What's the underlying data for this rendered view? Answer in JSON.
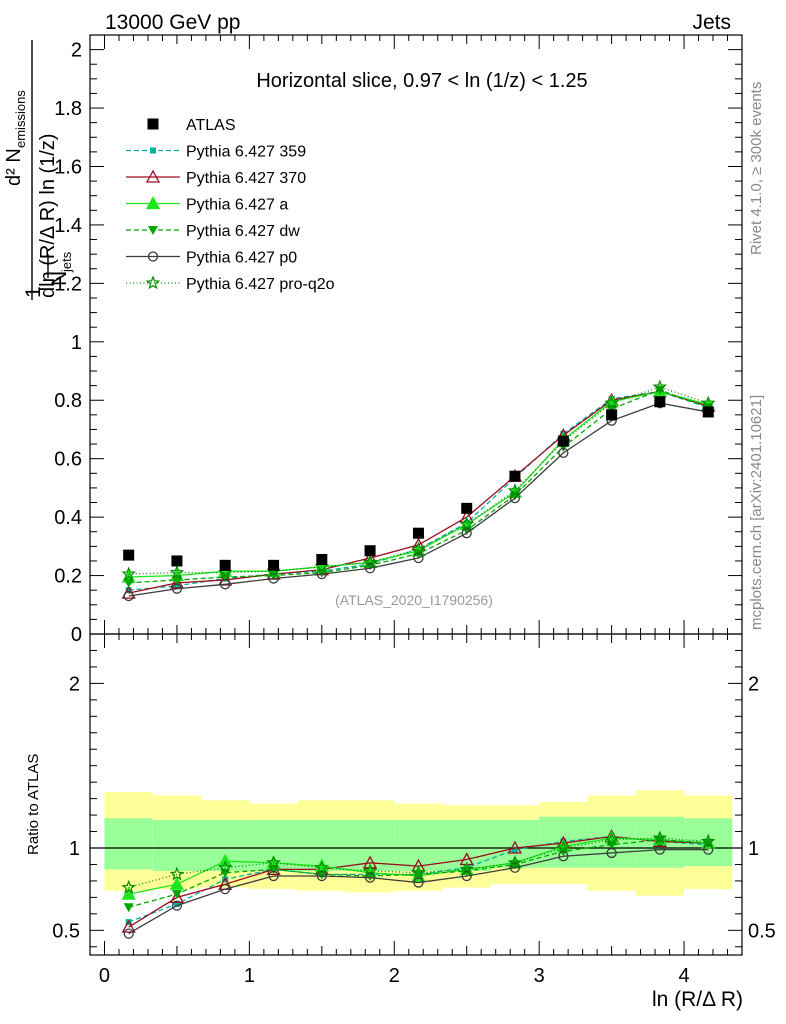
{
  "chart_data": {
    "type": "line",
    "header_left": "13000 GeV pp",
    "header_right": "Jets",
    "title": "Horizontal slice, 0.97 < ln (1/z) < 1.25",
    "watermark": "(ATLAS_2020_I1790256)",
    "side_label_top": "Rivet 4.1.0, ≥ 300k events",
    "side_label_bottom": "mcplots.cern.ch [arXiv:2401.10621]",
    "xlabel": "ln (R/Δ R)",
    "ylabel_main": {
      "prefix": "1",
      "njets": "N",
      "njets_sub": "jets",
      "numer": "d² N",
      "numer_sub": "emissions",
      "denom": "dln (R/Δ R) ln (1/z)"
    },
    "ylabel_ratio": "Ratio to ATLAS",
    "xlim": [
      -0.1,
      4.4
    ],
    "ylim_main": [
      0,
      2.05
    ],
    "ylim_ratio": [
      0.35,
      2.3
    ],
    "x_ticks": [
      0,
      1,
      2,
      3,
      4
    ],
    "x_tick_labels": [
      "0",
      "1",
      "2",
      "3",
      "4"
    ],
    "y_ticks_main": [
      0,
      0.2,
      0.4,
      0.6,
      0.8,
      1,
      1.2,
      1.4,
      1.6,
      1.8,
      2
    ],
    "y_tick_labels_main": [
      "0",
      "0.2",
      "0.4",
      "0.6",
      "0.8",
      "1",
      "1.2",
      "1.4",
      "1.6",
      "1.8",
      "2"
    ],
    "y_ticks_ratio": [
      0.5,
      1,
      2
    ],
    "y_tick_labels_ratio": [
      "0.5",
      "1",
      "2"
    ],
    "x": [
      0.167,
      0.5,
      0.833,
      1.167,
      1.5,
      1.833,
      2.167,
      2.5,
      2.833,
      3.167,
      3.5,
      3.833,
      4.167
    ],
    "bin_edges": [
      0,
      0.333,
      0.667,
      1.0,
      1.333,
      1.667,
      2.0,
      2.333,
      2.667,
      3.0,
      3.333,
      3.667,
      4.0,
      4.333
    ],
    "data": {
      "name": "ATLAS",
      "values": [
        0.27,
        0.25,
        0.235,
        0.235,
        0.255,
        0.285,
        0.345,
        0.43,
        0.54,
        0.66,
        0.75,
        0.795,
        0.76
      ],
      "band_inner": [
        [
          0.87,
          1.18
        ],
        [
          0.86,
          1.17
        ],
        [
          0.86,
          1.17
        ],
        [
          0.86,
          1.17
        ],
        [
          0.86,
          1.17
        ],
        [
          0.86,
          1.17
        ],
        [
          0.86,
          1.17
        ],
        [
          0.86,
          1.17
        ],
        [
          0.88,
          1.17
        ],
        [
          0.88,
          1.19
        ],
        [
          0.88,
          1.19
        ],
        [
          0.88,
          1.19
        ],
        [
          0.89,
          1.18
        ]
      ],
      "band_outer": [
        [
          0.74,
          1.34
        ],
        [
          0.75,
          1.32
        ],
        [
          0.76,
          1.29
        ],
        [
          0.75,
          1.27
        ],
        [
          0.74,
          1.29
        ],
        [
          0.73,
          1.29
        ],
        [
          0.74,
          1.27
        ],
        [
          0.76,
          1.26
        ],
        [
          0.78,
          1.26
        ],
        [
          0.78,
          1.28
        ],
        [
          0.74,
          1.32
        ],
        [
          0.71,
          1.35
        ],
        [
          0.75,
          1.32
        ]
      ]
    },
    "series": [
      {
        "name": "Pythia 6.427 359",
        "color": "#00b39e",
        "dash": "5,3",
        "marker": "square-small",
        "values": [
          0.15,
          0.165,
          0.19,
          0.205,
          0.215,
          0.24,
          0.29,
          0.38,
          0.535,
          0.685,
          0.805,
          0.83,
          0.775
        ],
        "ratio": [
          0.55,
          0.66,
          0.81,
          0.87,
          0.84,
          0.84,
          0.84,
          0.88,
          0.99,
          1.04,
          1.07,
          1.04,
          1.02
        ]
      },
      {
        "name": "Pythia 6.427 370",
        "color": "#9b0d1c",
        "dash": "",
        "marker": "triangle-open",
        "values": [
          0.14,
          0.175,
          0.185,
          0.205,
          0.22,
          0.26,
          0.305,
          0.4,
          0.54,
          0.68,
          0.8,
          0.83,
          0.78
        ],
        "ratio": [
          0.52,
          0.7,
          0.78,
          0.87,
          0.87,
          0.91,
          0.89,
          0.93,
          1.0,
          1.03,
          1.07,
          1.04,
          1.03
        ]
      },
      {
        "name": "Pythia 6.427 a",
        "color": "#1ee61e",
        "dash": "",
        "marker": "triangle",
        "values": [
          0.195,
          0.2,
          0.215,
          0.215,
          0.23,
          0.245,
          0.285,
          0.375,
          0.485,
          0.665,
          0.795,
          0.83,
          0.785
        ],
        "ratio": [
          0.72,
          0.78,
          0.92,
          0.91,
          0.89,
          0.85,
          0.83,
          0.87,
          0.91,
          1.01,
          1.06,
          1.05,
          1.03
        ]
      },
      {
        "name": "Pythia 6.427 dw",
        "color": "#00a800",
        "dash": "5,3",
        "marker": "triangle-down",
        "values": [
          0.175,
          0.185,
          0.195,
          0.2,
          0.21,
          0.235,
          0.275,
          0.355,
          0.475,
          0.64,
          0.77,
          0.835,
          0.775
        ],
        "ratio": [
          0.64,
          0.72,
          0.85,
          0.87,
          0.84,
          0.83,
          0.84,
          0.86,
          0.9,
          0.98,
          1.02,
          1.05,
          1.03
        ]
      },
      {
        "name": "Pythia 6.427 p0",
        "color": "#3c3c3c",
        "dash": "",
        "marker": "circle-open",
        "values": [
          0.13,
          0.155,
          0.17,
          0.19,
          0.205,
          0.225,
          0.26,
          0.345,
          0.465,
          0.62,
          0.73,
          0.79,
          0.76
        ],
        "ratio": [
          0.48,
          0.65,
          0.75,
          0.83,
          0.83,
          0.82,
          0.79,
          0.83,
          0.88,
          0.95,
          0.97,
          0.99,
          0.99
        ]
      },
      {
        "name": "Pythia 6.427 pro-q2o",
        "color": "#008c00",
        "dash": "1,2.5",
        "marker": "star",
        "values": [
          0.205,
          0.21,
          0.21,
          0.215,
          0.23,
          0.245,
          0.29,
          0.375,
          0.49,
          0.66,
          0.79,
          0.845,
          0.79
        ],
        "ratio": [
          0.76,
          0.84,
          0.88,
          0.91,
          0.88,
          0.86,
          0.85,
          0.87,
          0.91,
          1.0,
          1.05,
          1.06,
          1.04
        ]
      }
    ]
  }
}
